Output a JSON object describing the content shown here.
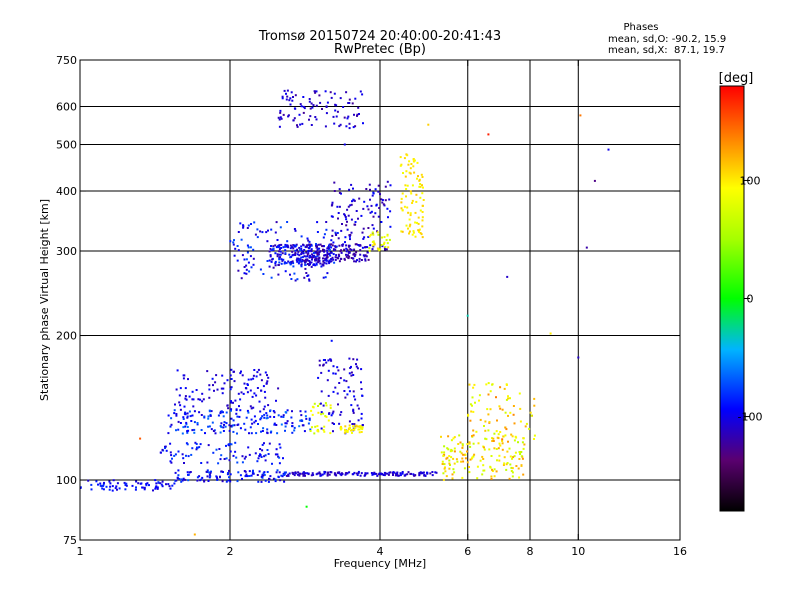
{
  "chart_data": {
    "type": "scatter",
    "title": "Tromsø 20150724 20:40:00-20:41:43",
    "subtitle": "RwPretec (Bp)",
    "xlabel": "Frequency [MHz]",
    "ylabel": "Stationary phase Virtual Height [km]",
    "x_scale": "log",
    "y_scale": "log",
    "xlim": [
      1,
      16
    ],
    "ylim": [
      75,
      750
    ],
    "x_ticks": [
      1,
      2,
      4,
      6,
      8,
      10,
      16
    ],
    "x_tick_labels": [
      "1",
      "2",
      "4",
      "6",
      "8",
      "10",
      "16"
    ],
    "y_ticks": [
      75,
      100,
      200,
      300,
      400,
      500,
      600,
      750
    ],
    "y_tick_labels": [
      "75",
      "100",
      "200",
      "300",
      "400",
      "500",
      "600",
      "750"
    ],
    "x_gridlines": [
      2,
      4,
      6,
      8,
      10
    ],
    "y_gridlines": [
      100,
      200,
      300,
      400,
      500,
      600
    ],
    "grid": true,
    "stats": {
      "heading": "Phases",
      "line1": "mean, sd,O: -90.2, 15.9",
      "line2": "mean, sd,X:  87.1, 19.7"
    },
    "colorbar": {
      "label": "[deg]",
      "range": [
        -180,
        180
      ],
      "ticks": [
        100,
        0,
        -100
      ],
      "tick_labels": [
        "100",
        "0",
        "-100"
      ]
    },
    "traces": [
      {
        "x_range": [
          1.0,
          1.55
        ],
        "y_range": [
          95,
          100
        ],
        "n": 70,
        "phase": [
          -110,
          -80
        ]
      },
      {
        "x_range": [
          1.55,
          2.6
        ],
        "y_range": [
          99,
          105
        ],
        "n": 110,
        "phase": [
          -115,
          -70
        ]
      },
      {
        "x_range": [
          2.6,
          5.2
        ],
        "y_range": [
          102,
          104
        ],
        "n": 150,
        "phase": [
          -120,
          -95
        ]
      },
      {
        "x_range": [
          1.45,
          2.6
        ],
        "y_range": [
          108,
          120
        ],
        "n": 90,
        "phase": [
          -110,
          -70
        ]
      },
      {
        "x_range": [
          1.5,
          2.9
        ],
        "y_range": [
          125,
          140
        ],
        "n": 180,
        "phase": [
          -110,
          -60
        ]
      },
      {
        "x_range": [
          1.55,
          2.5
        ],
        "y_range": [
          140,
          170
        ],
        "n": 110,
        "phase": [
          -115,
          -90
        ]
      },
      {
        "x_range": [
          2.9,
          3.2
        ],
        "y_range": [
          125,
          145
        ],
        "n": 30,
        "phase": [
          60,
          100
        ]
      },
      {
        "x_range": [
          3.0,
          3.7
        ],
        "y_range": [
          125,
          180
        ],
        "n": 90,
        "phase": [
          -120,
          -90
        ]
      },
      {
        "x_range": [
          3.3,
          3.7
        ],
        "y_range": [
          125,
          130
        ],
        "n": 40,
        "phase": [
          85,
          110
        ]
      },
      {
        "x_range": [
          2.4,
          3.2
        ],
        "y_range": [
          280,
          310
        ],
        "n": 180,
        "phase": [
          -120,
          -80
        ]
      },
      {
        "x_range": [
          2.0,
          3.3
        ],
        "y_range": [
          260,
          345
        ],
        "n": 140,
        "phase": [
          -120,
          -70
        ]
      },
      {
        "x_range": [
          2.8,
          3.8
        ],
        "y_range": [
          285,
          310
        ],
        "n": 130,
        "phase": [
          -130,
          -100
        ]
      },
      {
        "x_range": [
          3.2,
          4.2
        ],
        "y_range": [
          300,
          420
        ],
        "n": 120,
        "phase": [
          -125,
          -90
        ]
      },
      {
        "x_range": [
          3.8,
          4.2
        ],
        "y_range": [
          300,
          330
        ],
        "n": 30,
        "phase": [
          60,
          110
        ]
      },
      {
        "x_range": [
          4.4,
          4.9
        ],
        "y_range": [
          320,
          480
        ],
        "n": 90,
        "phase": [
          85,
          115
        ]
      },
      {
        "x_range": [
          2.5,
          3.7
        ],
        "y_range": [
          540,
          650
        ],
        "n": 100,
        "phase": [
          -125,
          -95
        ]
      },
      {
        "x_range": [
          5.3,
          7.8
        ],
        "y_range": [
          100,
          125
        ],
        "n": 160,
        "phase": [
          60,
          130
        ]
      },
      {
        "x_range": [
          6.0,
          8.2
        ],
        "y_range": [
          120,
          160
        ],
        "n": 80,
        "phase": [
          70,
          140
        ]
      }
    ],
    "isolated_points": [
      {
        "x": 1.32,
        "y": 122,
        "phase": 150
      },
      {
        "x": 1.7,
        "y": 77,
        "phase": 120
      },
      {
        "x": 2.85,
        "y": 88,
        "phase": 0
      },
      {
        "x": 3.2,
        "y": 195,
        "phase": -90
      },
      {
        "x": 3.4,
        "y": 500,
        "phase": -100
      },
      {
        "x": 5.0,
        "y": 550,
        "phase": 110
      },
      {
        "x": 6.6,
        "y": 525,
        "phase": 170
      },
      {
        "x": 6.0,
        "y": 220,
        "phase": -30
      },
      {
        "x": 7.2,
        "y": 265,
        "phase": -110
      },
      {
        "x": 8.8,
        "y": 202,
        "phase": 100
      },
      {
        "x": 10.1,
        "y": 575,
        "phase": 140
      },
      {
        "x": 10.4,
        "y": 305,
        "phase": -120
      },
      {
        "x": 10.8,
        "y": 420,
        "phase": -130
      },
      {
        "x": 11.5,
        "y": 488,
        "phase": -100
      },
      {
        "x": 10.0,
        "y": 180,
        "phase": -110
      }
    ]
  }
}
